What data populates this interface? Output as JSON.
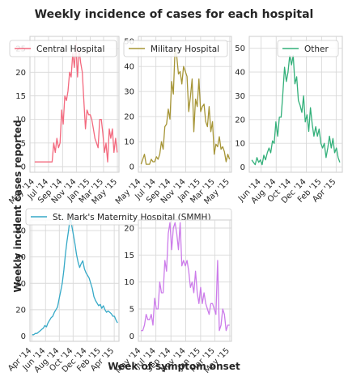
{
  "figure": {
    "title": "Weekly incidence of cases for each hospital",
    "xlabel": "Week of symptom onset",
    "ylabel": "Weekly incident cases reported"
  },
  "chart_data": [
    {
      "type": "line",
      "title": "",
      "legend": "top-left",
      "grid": true,
      "series": [
        {
          "name": "Central Hospital",
          "color": "#f3697e",
          "x": [
            "2014-05-01",
            "2014-05-08",
            "2014-05-15",
            "2014-05-22",
            "2014-05-29",
            "2014-06-05",
            "2014-06-12",
            "2014-06-19",
            "2014-06-26",
            "2014-07-03",
            "2014-07-10",
            "2014-07-17",
            "2014-07-24",
            "2014-07-31",
            "2014-08-07",
            "2014-08-14",
            "2014-08-21",
            "2014-08-28",
            "2014-09-04",
            "2014-09-11",
            "2014-09-18",
            "2014-09-25",
            "2014-10-02",
            "2014-10-09",
            "2014-10-16",
            "2014-10-23",
            "2014-10-30",
            "2014-11-06",
            "2014-11-13",
            "2014-11-20",
            "2014-11-27",
            "2014-12-04",
            "2014-12-11",
            "2014-12-18",
            "2014-12-25",
            "2015-01-01",
            "2015-01-08",
            "2015-01-15",
            "2015-01-22",
            "2015-01-29",
            "2015-02-05",
            "2015-02-12",
            "2015-02-19",
            "2015-02-26",
            "2015-03-05",
            "2015-03-12",
            "2015-03-19",
            "2015-03-26",
            "2015-04-02",
            "2015-04-09",
            "2015-04-16",
            "2015-04-23",
            "2015-04-30"
          ],
          "y": [
            1,
            1,
            1,
            1,
            1,
            1,
            1,
            1,
            1,
            1,
            1,
            1,
            5,
            3,
            6,
            4,
            5,
            12,
            9,
            15,
            14,
            16,
            20,
            19,
            24,
            21,
            26,
            19,
            25,
            22,
            20,
            14,
            8,
            12,
            11,
            11,
            10,
            8,
            6,
            5,
            4,
            10,
            10,
            7,
            3,
            5,
            1,
            8,
            6,
            8,
            3,
            6,
            3
          ]
        }
      ],
      "xticks": [
        "May '14",
        "Jul '14",
        "Sep '14",
        "Nov '14",
        "Jan '15",
        "Mar '15",
        "May '15"
      ],
      "xtick_values": [
        "2014-05-01",
        "2014-07-01",
        "2014-09-01",
        "2014-11-01",
        "2015-01-01",
        "2015-03-01",
        "2015-05-01"
      ],
      "yticks": [
        0,
        5,
        10,
        15,
        20,
        25
      ],
      "xlim": [
        "2014-04-10",
        "2015-05-08"
      ],
      "ylim": [
        -1.2,
        27.6
      ]
    },
    {
      "type": "line",
      "title": "",
      "legend": "top-right",
      "grid": true,
      "series": [
        {
          "name": "Military Hospital",
          "color": "#a69536",
          "x": [
            "2014-05-01",
            "2014-05-08",
            "2014-05-15",
            "2014-05-22",
            "2014-05-29",
            "2014-06-05",
            "2014-06-12",
            "2014-06-19",
            "2014-06-26",
            "2014-07-03",
            "2014-07-10",
            "2014-07-17",
            "2014-07-24",
            "2014-07-31",
            "2014-08-07",
            "2014-08-14",
            "2014-08-21",
            "2014-08-28",
            "2014-09-04",
            "2014-09-11",
            "2014-09-18",
            "2014-09-25",
            "2014-10-02",
            "2014-10-09",
            "2014-10-16",
            "2014-10-23",
            "2014-10-30",
            "2014-11-06",
            "2014-11-13",
            "2014-11-20",
            "2014-11-27",
            "2014-12-04",
            "2014-12-11",
            "2014-12-18",
            "2014-12-25",
            "2015-01-01",
            "2015-01-08",
            "2015-01-15",
            "2015-01-22",
            "2015-01-29",
            "2015-02-05",
            "2015-02-12",
            "2015-02-19",
            "2015-02-26",
            "2015-03-05",
            "2015-03-12",
            "2015-03-19",
            "2015-03-26",
            "2015-04-02",
            "2015-04-09",
            "2015-04-16",
            "2015-04-23",
            "2015-04-30"
          ],
          "y": [
            1,
            3,
            5,
            1,
            1,
            1,
            3,
            2,
            2,
            4,
            3,
            5,
            10,
            7,
            16,
            17,
            23,
            19,
            34,
            29,
            47,
            44,
            37,
            38,
            33,
            40,
            38,
            36,
            22,
            28,
            35,
            14,
            27,
            24,
            35,
            22,
            24,
            25,
            18,
            16,
            24,
            14,
            18,
            5,
            9,
            8,
            12,
            7,
            8,
            6,
            2,
            5,
            3
          ]
        }
      ],
      "xticks": [
        "May '14",
        "Jul '14",
        "Sep '14",
        "Nov '14",
        "Jan '15",
        "Mar '15",
        "May '15"
      ],
      "xtick_values": [
        "2014-05-01",
        "2014-07-01",
        "2014-09-01",
        "2014-11-01",
        "2015-01-01",
        "2015-03-01",
        "2015-05-01"
      ],
      "yticks": [
        0,
        10,
        20,
        30,
        40,
        50
      ],
      "xlim": [
        "2014-04-20",
        "2015-05-08"
      ],
      "ylim": [
        -2.2,
        52
      ]
    },
    {
      "type": "line",
      "title": "",
      "legend": "top-right",
      "grid": true,
      "series": [
        {
          "name": "Other",
          "color": "#33b07a",
          "x": [
            "2014-04-24",
            "2014-05-01",
            "2014-05-08",
            "2014-05-15",
            "2014-05-22",
            "2014-05-29",
            "2014-06-05",
            "2014-06-12",
            "2014-06-19",
            "2014-06-26",
            "2014-07-03",
            "2014-07-10",
            "2014-07-17",
            "2014-07-24",
            "2014-07-31",
            "2014-08-07",
            "2014-08-14",
            "2014-08-21",
            "2014-08-28",
            "2014-09-04",
            "2014-09-11",
            "2014-09-18",
            "2014-09-25",
            "2014-10-02",
            "2014-10-09",
            "2014-10-16",
            "2014-10-23",
            "2014-10-30",
            "2014-11-06",
            "2014-11-13",
            "2014-11-20",
            "2014-11-27",
            "2014-12-04",
            "2014-12-11",
            "2014-12-18",
            "2014-12-25",
            "2015-01-01",
            "2015-01-08",
            "2015-01-15",
            "2015-01-22",
            "2015-01-29",
            "2015-02-05",
            "2015-02-12",
            "2015-02-19",
            "2015-02-26",
            "2015-03-05",
            "2015-03-12",
            "2015-03-19",
            "2015-03-26",
            "2015-04-02",
            "2015-04-09",
            "2015-04-16"
          ],
          "y": [
            3,
            2,
            1,
            4,
            2,
            3,
            1,
            5,
            3,
            6,
            8,
            6,
            11,
            10,
            19,
            13,
            21,
            21,
            31,
            42,
            36,
            40,
            47,
            43,
            47,
            35,
            38,
            28,
            26,
            23,
            30,
            19,
            22,
            15,
            25,
            18,
            13,
            17,
            13,
            16,
            10,
            8,
            10,
            4,
            8,
            13,
            8,
            12,
            6,
            8,
            4,
            2
          ]
        }
      ],
      "xticks": [
        "Jun '14",
        "Aug '14",
        "Oct '14",
        "Dec '14",
        "Feb '15",
        "Apr '15"
      ],
      "xtick_values": [
        "2014-06-01",
        "2014-08-01",
        "2014-10-01",
        "2014-12-01",
        "2015-02-01",
        "2015-04-01"
      ],
      "yticks": [
        0,
        10,
        20,
        30,
        40,
        50
      ],
      "xlim": [
        "2014-04-14",
        "2015-04-26"
      ],
      "ylim": [
        -2.2,
        55
      ]
    },
    {
      "type": "line",
      "title": "",
      "legend": "top",
      "grid": true,
      "series": [
        {
          "name": "St. Mark's Maternity Hospital (SMMH)",
          "color": "#35a9c7",
          "x": [
            "2014-04-03",
            "2014-04-10",
            "2014-04-17",
            "2014-04-24",
            "2014-05-01",
            "2014-05-08",
            "2014-05-15",
            "2014-05-22",
            "2014-05-29",
            "2014-06-05",
            "2014-06-12",
            "2014-06-19",
            "2014-06-26",
            "2014-07-03",
            "2014-07-10",
            "2014-07-17",
            "2014-07-24",
            "2014-07-31",
            "2014-08-07",
            "2014-08-14",
            "2014-08-21",
            "2014-08-28",
            "2014-09-04",
            "2014-09-11",
            "2014-09-18",
            "2014-09-25",
            "2014-10-02",
            "2014-10-09",
            "2014-10-16",
            "2014-10-23",
            "2014-10-30",
            "2014-11-06",
            "2014-11-13",
            "2014-11-20",
            "2014-11-27",
            "2014-12-04",
            "2014-12-11",
            "2014-12-18",
            "2014-12-25",
            "2015-01-01",
            "2015-01-08",
            "2015-01-15",
            "2015-01-22",
            "2015-01-29",
            "2015-02-05",
            "2015-02-12",
            "2015-02-19",
            "2015-02-26",
            "2015-03-05",
            "2015-03-12",
            "2015-03-19",
            "2015-03-26",
            "2015-04-02",
            "2015-04-09",
            "2015-04-16"
          ],
          "y": [
            1,
            1,
            2,
            2,
            3,
            4,
            5,
            6,
            8,
            7,
            10,
            12,
            14,
            15,
            18,
            20,
            22,
            28,
            34,
            40,
            50,
            62,
            72,
            80,
            90,
            84,
            77,
            70,
            62,
            56,
            52,
            55,
            57,
            51,
            48,
            46,
            44,
            40,
            36,
            30,
            27,
            25,
            23,
            24,
            21,
            23,
            20,
            18,
            19,
            18,
            17,
            15,
            15,
            12,
            10
          ]
        }
      ],
      "xticks": [
        "Apr '14",
        "Jun '14",
        "Aug '14",
        "Oct '14",
        "Dec '14",
        "Feb '15",
        "Apr '15"
      ],
      "xtick_values": [
        "2014-04-01",
        "2014-06-01",
        "2014-08-01",
        "2014-10-01",
        "2014-12-01",
        "2015-02-01",
        "2015-04-01"
      ],
      "yticks": [
        0,
        20,
        40,
        60,
        80
      ],
      "xlim": [
        "2014-03-24",
        "2015-04-22"
      ],
      "ylim": [
        -4,
        88
      ]
    },
    {
      "type": "line",
      "title": "",
      "grid": true,
      "series": [
        {
          "name": "St. Mark's Maternity Hospital (SMMH)",
          "color": "#cc7cea",
          "x": [
            "2014-05-01",
            "2014-05-08",
            "2014-05-15",
            "2014-05-22",
            "2014-05-29",
            "2014-06-05",
            "2014-06-12",
            "2014-06-19",
            "2014-06-26",
            "2014-07-03",
            "2014-07-10",
            "2014-07-17",
            "2014-07-24",
            "2014-07-31",
            "2014-08-07",
            "2014-08-14",
            "2014-08-21",
            "2014-08-28",
            "2014-09-04",
            "2014-09-11",
            "2014-09-18",
            "2014-09-25",
            "2014-10-02",
            "2014-10-09",
            "2014-10-16",
            "2014-10-23",
            "2014-10-30",
            "2014-11-06",
            "2014-11-13",
            "2014-11-20",
            "2014-11-27",
            "2014-12-04",
            "2014-12-11",
            "2014-12-18",
            "2014-12-25",
            "2015-01-01",
            "2015-01-08",
            "2015-01-15",
            "2015-01-22",
            "2015-01-29",
            "2015-02-05",
            "2015-02-12",
            "2015-02-19",
            "2015-02-26",
            "2015-03-05",
            "2015-03-12",
            "2015-03-19",
            "2015-03-26",
            "2015-04-02",
            "2015-04-09",
            "2015-04-16",
            "2015-04-23",
            "2015-04-30"
          ],
          "y": [
            1,
            1,
            2,
            4,
            3,
            3,
            4,
            2,
            7,
            5,
            5,
            10,
            8,
            8,
            14,
            12,
            19,
            21,
            16,
            20,
            21,
            19,
            16,
            21,
            13,
            14,
            13,
            14,
            12,
            9,
            10,
            8,
            12,
            8,
            6,
            9,
            6,
            8,
            6,
            5,
            4,
            6,
            6,
            5,
            4,
            14,
            1,
            2,
            5,
            4,
            1,
            2,
            2
          ]
        }
      ],
      "xticks": [
        "May '14",
        "Jul '14",
        "Sep '14",
        "Nov '14",
        "Jan '15",
        "Mar '15",
        "May '15"
      ],
      "xtick_values": [
        "2014-05-01",
        "2014-07-01",
        "2014-09-01",
        "2014-11-01",
        "2015-01-01",
        "2015-03-01",
        "2015-05-01"
      ],
      "yticks": [
        0,
        5,
        10,
        15,
        20
      ],
      "xlim": [
        "2014-04-20",
        "2015-05-08"
      ],
      "ylim": [
        -1,
        21.5
      ]
    }
  ]
}
